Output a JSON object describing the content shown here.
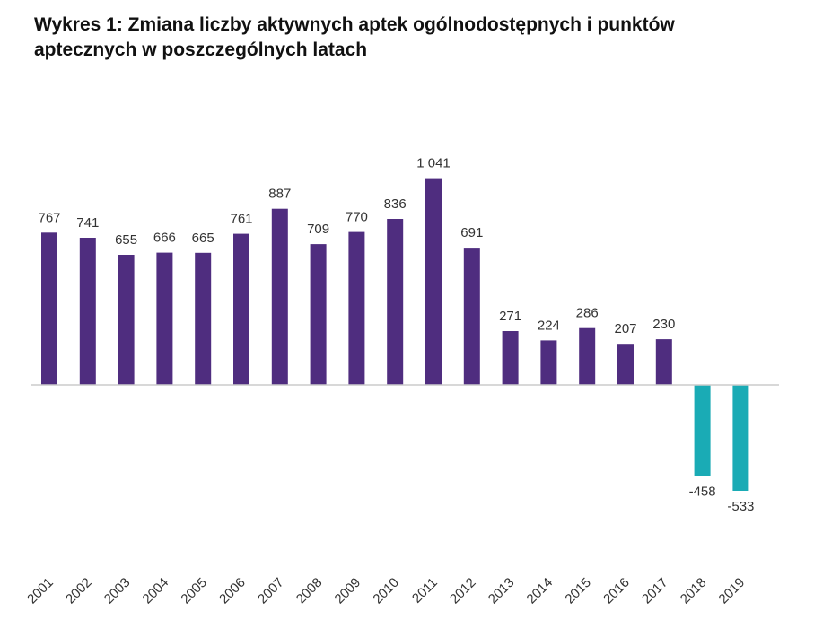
{
  "title": {
    "line1": "Wykres 1: Zmiana liczby aktywnych aptek ogólnodostępnych i punktów",
    "line2": "aptecznych w poszczególnych latach"
  },
  "colors": {
    "positive": "#4f2d7f",
    "negative": "#1aabb5",
    "axis": "#cccccc",
    "text": "#333333"
  },
  "chart_data": {
    "type": "bar",
    "title": "Wykres 1: Zmiana liczby aktywnych aptek ogólnodostępnych i punktów aptecznych w poszczególnych latach",
    "xlabel": "",
    "ylabel": "",
    "grid": false,
    "categories": [
      "2001",
      "2002",
      "2003",
      "2004",
      "2005",
      "2006",
      "2007",
      "2008",
      "2009",
      "2010",
      "2011",
      "2012",
      "2013",
      "2014",
      "2015",
      "2016",
      "2017",
      "2018",
      "2019"
    ],
    "values": [
      767,
      741,
      655,
      666,
      665,
      761,
      887,
      709,
      770,
      836,
      1041,
      691,
      271,
      224,
      286,
      207,
      230,
      -458,
      -533
    ],
    "value_labels": [
      "767",
      "741",
      "655",
      "666",
      "665",
      "761",
      "887",
      "709",
      "770",
      "836",
      "1 041",
      "691",
      "271",
      "224",
      "286",
      "207",
      "230",
      "-458",
      "-533"
    ],
    "ylim": [
      -533,
      1041
    ]
  }
}
